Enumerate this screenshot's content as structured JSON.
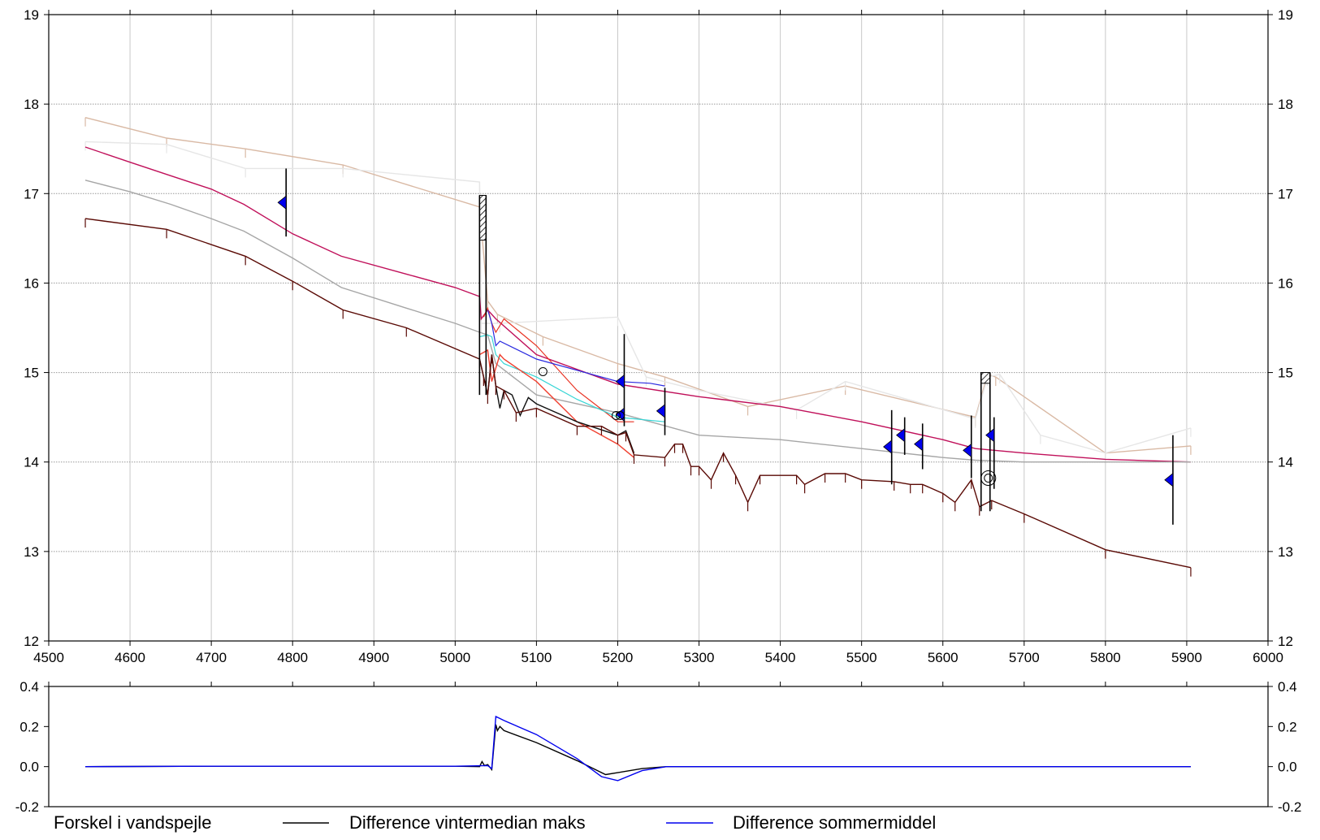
{
  "chart_data": [
    {
      "type": "line",
      "title": "",
      "xlabel": "",
      "ylabel": "",
      "xlim": [
        4500,
        6000
      ],
      "ylim": [
        12,
        19
      ],
      "xticks": [
        4500,
        4600,
        4700,
        4800,
        4900,
        5000,
        5100,
        5200,
        5300,
        5400,
        5500,
        5600,
        5700,
        5800,
        5900,
        6000
      ],
      "yticks": [
        12,
        13,
        14,
        15,
        16,
        17,
        18,
        19
      ],
      "grid": true,
      "series": [
        {
          "color": "#d9b9a4",
          "x": [
            4545,
            4645,
            4742,
            4862,
            5030,
            5040,
            5052,
            5108,
            5200,
            5258,
            5360,
            5480,
            5640,
            5655,
            5665,
            5800,
            5905
          ],
          "y": [
            17.85,
            17.62,
            17.5,
            17.32,
            16.85,
            15.8,
            15.65,
            15.4,
            15.1,
            14.95,
            14.62,
            14.85,
            14.5,
            14.98,
            14.95,
            14.1,
            14.18
          ]
        },
        {
          "color": "#e6e6e6",
          "x": [
            4545,
            4645,
            4742,
            4862,
            5030,
            5032,
            5055,
            5200,
            5235,
            5300,
            5420,
            5480,
            5640,
            5655,
            5670,
            5720,
            5800,
            5905
          ],
          "y": [
            17.58,
            17.55,
            17.28,
            17.28,
            17.13,
            15.55,
            15.55,
            15.62,
            14.95,
            14.8,
            14.58,
            14.9,
            14.48,
            14.95,
            14.98,
            14.3,
            14.1,
            14.38
          ]
        },
        {
          "color": "#c0105a",
          "x": [
            4545,
            4600,
            4650,
            4700,
            4740,
            4800,
            4860,
            4940,
            5000,
            5030,
            5032,
            5040,
            5050,
            5100,
            5200,
            5300,
            5400,
            5500,
            5600,
            5640,
            5700,
            5800,
            5905
          ],
          "y": [
            17.52,
            17.35,
            17.2,
            17.05,
            16.88,
            16.55,
            16.3,
            16.1,
            15.95,
            15.85,
            15.6,
            15.7,
            15.6,
            15.2,
            14.87,
            14.73,
            14.62,
            14.45,
            14.25,
            14.15,
            14.1,
            14.03,
            14.0
          ]
        },
        {
          "color": "#a6a6a6",
          "x": [
            4545,
            4600,
            4650,
            4700,
            4740,
            4800,
            4860,
            4940,
            5000,
            5030,
            5040,
            5050,
            5100,
            5200,
            5300,
            5400,
            5500,
            5600,
            5640,
            5700,
            5800,
            5905
          ],
          "y": [
            17.15,
            17.02,
            16.88,
            16.72,
            16.58,
            16.28,
            15.95,
            15.72,
            15.55,
            15.45,
            15.42,
            15.1,
            14.75,
            14.55,
            14.3,
            14.25,
            14.15,
            14.05,
            14.02,
            14.0,
            14.0,
            14.0
          ]
        },
        {
          "color": "#e83020",
          "x": [
            5035,
            5040,
            5045,
            5050,
            5060,
            5100,
            5150,
            5200,
            5220
          ],
          "y": [
            15.62,
            15.72,
            15.55,
            15.45,
            15.6,
            15.3,
            14.8,
            14.45,
            14.45
          ]
        },
        {
          "color": "#2a2ae0",
          "x": [
            5040,
            5045,
            5050,
            5055,
            5100,
            5160,
            5200,
            5240,
            5258
          ],
          "y": [
            15.7,
            15.55,
            15.3,
            15.35,
            15.15,
            15.0,
            14.9,
            14.88,
            14.85
          ]
        },
        {
          "color": "#35d5d5",
          "x": [
            5030,
            5040,
            5045,
            5050,
            5060,
            5100,
            5150,
            5200,
            5258
          ],
          "y": [
            15.4,
            15.42,
            15.4,
            15.2,
            15.1,
            14.95,
            14.7,
            14.5,
            14.45
          ]
        },
        {
          "color": "#f04030",
          "x": [
            5030,
            5040,
            5045,
            5055,
            5060,
            5100,
            5150,
            5200,
            5220
          ],
          "y": [
            15.2,
            15.25,
            14.9,
            15.2,
            15.15,
            14.9,
            14.45,
            14.2,
            14.05
          ]
        },
        {
          "color": "#111111",
          "x": [
            5030,
            5035,
            5040,
            5045,
            5050,
            5055,
            5060,
            5070,
            5080,
            5090,
            5100,
            5150,
            5200,
            5210,
            5220
          ],
          "y": [
            15.15,
            14.95,
            14.75,
            15.2,
            14.85,
            14.6,
            14.8,
            14.75,
            14.52,
            14.72,
            14.65,
            14.45,
            14.3,
            14.35,
            14.1
          ]
        },
        {
          "color": "#5a0a05",
          "x": [
            4545,
            4645,
            4742,
            4800,
            4862,
            4940,
            5030,
            5035,
            5040,
            5045,
            5050,
            5060,
            5075,
            5100,
            5150,
            5180,
            5200,
            5210,
            5220,
            5258,
            5270,
            5280,
            5290,
            5300,
            5315,
            5330,
            5345,
            5360,
            5375,
            5420,
            5430,
            5455,
            5480,
            5500,
            5540,
            5560,
            5575,
            5600,
            5615,
            5635,
            5645,
            5660,
            5700,
            5800,
            5905
          ],
          "y": [
            16.72,
            16.6,
            16.3,
            16.02,
            15.7,
            15.5,
            15.15,
            14.95,
            14.75,
            15.2,
            14.85,
            14.8,
            14.55,
            14.6,
            14.4,
            14.4,
            14.3,
            14.33,
            14.08,
            14.05,
            14.2,
            14.2,
            13.95,
            13.95,
            13.8,
            14.1,
            13.85,
            13.55,
            13.85,
            13.85,
            13.75,
            13.87,
            13.87,
            13.8,
            13.78,
            13.75,
            13.75,
            13.65,
            13.55,
            13.8,
            13.5,
            13.57,
            13.42,
            13.02,
            12.82
          ]
        }
      ],
      "vertical_markers": [
        {
          "x": 4792,
          "top": 17.28,
          "bottom": 16.52
        },
        {
          "x": 5208,
          "top": 15.43,
          "bottom": 14.4
        },
        {
          "x": 5258,
          "top": 14.83,
          "bottom": 14.3
        },
        {
          "x": 5537,
          "top": 14.58,
          "bottom": 13.75
        },
        {
          "x": 5553,
          "top": 14.5,
          "bottom": 14.08
        },
        {
          "x": 5575,
          "top": 14.43,
          "bottom": 13.92
        },
        {
          "x": 5635,
          "top": 14.52,
          "bottom": 13.82
        },
        {
          "x": 5663,
          "top": 14.5,
          "bottom": 13.7
        },
        {
          "x": 5883,
          "top": 14.3,
          "bottom": 13.3
        }
      ],
      "flow_markers": [
        {
          "x": 4792,
          "y": 16.9
        },
        {
          "x": 5208,
          "y": 14.9
        },
        {
          "x": 5208,
          "y": 14.53
        },
        {
          "x": 5258,
          "y": 14.57
        },
        {
          "x": 5537,
          "y": 14.17
        },
        {
          "x": 5553,
          "y": 14.3
        },
        {
          "x": 5575,
          "y": 14.2
        },
        {
          "x": 5635,
          "y": 14.13
        },
        {
          "x": 5663,
          "y": 14.3
        },
        {
          "x": 5883,
          "y": 13.8
        }
      ],
      "circle_markers": [
        {
          "x": 5108,
          "y": 15.01
        },
        {
          "x": 5198,
          "y": 14.52
        },
        {
          "x": 5203,
          "y": 14.52
        },
        {
          "x": 5656,
          "y": 13.82
        }
      ],
      "structures": [
        {
          "x1": 5030,
          "x2": 5038,
          "top": 16.98,
          "hatch_bottom": 16.48,
          "bottom": 14.75
        },
        {
          "x1": 5647,
          "x2": 5658,
          "top": 15.0,
          "hatch_bottom": 14.88,
          "bottom": 13.45
        }
      ]
    },
    {
      "type": "line",
      "title": "",
      "xlabel": "",
      "ylabel": "",
      "xlim": [
        4500,
        6000
      ],
      "ylim": [
        -0.2,
        0.4
      ],
      "yticks": [
        -0.2,
        0.0,
        0.2,
        0.4
      ],
      "ytick_labels": [
        "-0.2",
        "0.0",
        "0.2",
        "0.4"
      ],
      "grid": false,
      "legend_title": "Forskel i vandspejle",
      "series": [
        {
          "name": "Difference vintermedian maks",
          "color": "#000000",
          "x": [
            4545,
            4700,
            5000,
            5030,
            5033,
            5036,
            5040,
            5045,
            5050,
            5052,
            5055,
            5060,
            5100,
            5150,
            5185,
            5200,
            5230,
            5260,
            5905
          ],
          "y": [
            0,
            0.002,
            0.002,
            0,
            0.025,
            0.005,
            0.01,
            -0.015,
            0.21,
            0.18,
            0.2,
            0.18,
            0.12,
            0.03,
            -0.04,
            -0.03,
            -0.01,
            0,
            0
          ]
        },
        {
          "name": "Difference sommermiddel",
          "color": "#0000ee",
          "x": [
            4545,
            4700,
            5000,
            5040,
            5045,
            5050,
            5060,
            5100,
            5150,
            5180,
            5200,
            5230,
            5260,
            5905
          ],
          "y": [
            0,
            0.002,
            0.002,
            0.005,
            -0.01,
            0.25,
            0.23,
            0.16,
            0.04,
            -0.05,
            -0.07,
            -0.02,
            0,
            0
          ]
        }
      ]
    }
  ]
}
